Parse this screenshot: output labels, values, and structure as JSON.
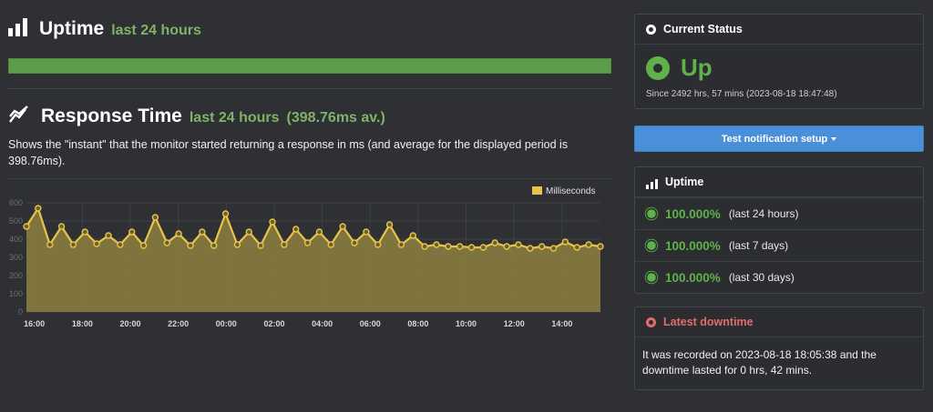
{
  "uptime_section": {
    "title": "Uptime",
    "period": "last 24 hours",
    "bar_percent": 100
  },
  "response_section": {
    "title": "Response Time",
    "period": "last 24 hours",
    "average": "(398.76ms av.)",
    "description": "Shows the \"instant\" that the monitor started returning a response in ms (and average for the displayed period is 398.76ms)."
  },
  "chart_data": {
    "type": "area",
    "legend": "Milliseconds",
    "legend_position": "top-right",
    "grid": true,
    "ylim": [
      0,
      600
    ],
    "yticks": [
      "0",
      "100",
      "200",
      "300",
      "400",
      "500",
      "600"
    ],
    "xticks": [
      "16:00",
      "18:00",
      "20:00",
      "22:00",
      "00:00",
      "02:00",
      "04:00",
      "06:00",
      "08:00",
      "10:00",
      "12:00",
      "14:00"
    ],
    "series": [
      {
        "name": "Milliseconds",
        "values": [
          470,
          570,
          370,
          470,
          370,
          440,
          375,
          420,
          370,
          440,
          365,
          520,
          380,
          430,
          365,
          440,
          365,
          540,
          370,
          440,
          365,
          495,
          370,
          455,
          380,
          440,
          370,
          470,
          380,
          440,
          370,
          480,
          370,
          420,
          360,
          370,
          360,
          360,
          355,
          355,
          380,
          360,
          370,
          350,
          360,
          350,
          385,
          355,
          370,
          360
        ]
      }
    ],
    "x_start_hour": 15.67,
    "x_end_hour": 39.6,
    "color": "#e8c44a",
    "fill": "#84783e"
  },
  "status_panel": {
    "heading": "Current Status",
    "state": "Up",
    "since": "Since 2492 hrs, 57 mins (2023-08-18 18:47:48)"
  },
  "test_button": {
    "label": "Test notification setup"
  },
  "uptime_panel": {
    "heading": "Uptime",
    "rows": [
      {
        "pct": "100.000%",
        "period": "(last 24 hours)"
      },
      {
        "pct": "100.000%",
        "period": "(last 7 days)"
      },
      {
        "pct": "100.000%",
        "period": "(last 30 days)"
      }
    ]
  },
  "downtime_panel": {
    "heading": "Latest downtime",
    "text": "It was recorded on 2023-08-18 18:05:38 and the downtime lasted for 0 hrs, 42 mins."
  }
}
